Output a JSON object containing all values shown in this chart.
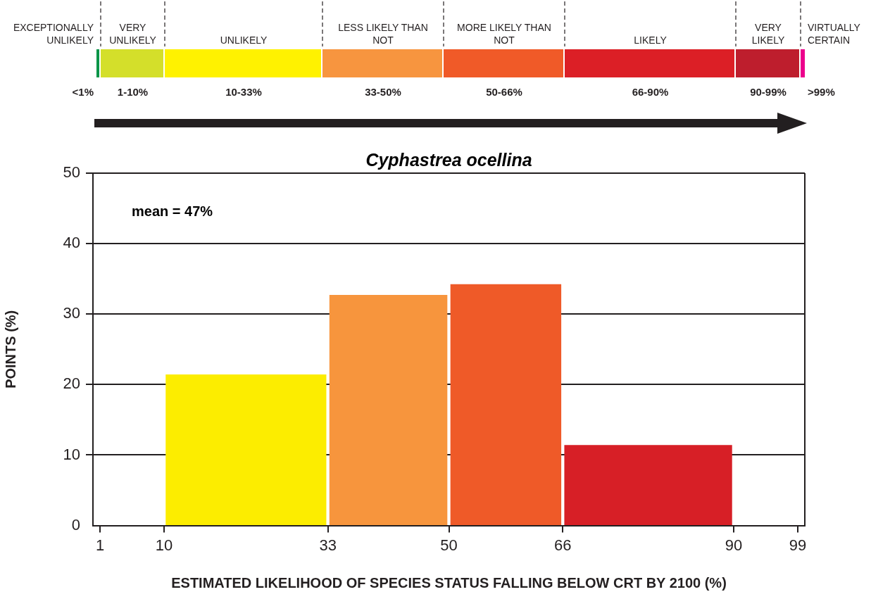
{
  "chart_data": {
    "type": "histogram",
    "title": "Cyphastrea ocellina",
    "xlabel": "ESTIMATED LIKELIHOOD OF SPECIES STATUS FALLING BELOW CRT BY 2100 (%)",
    "ylabel": "POINTS (%)",
    "bins": [
      10,
      33,
      50,
      66,
      90
    ],
    "values": [
      21.4,
      32.7,
      34.2,
      11.4
    ],
    "colors": [
      "#fced00",
      "#f7953d",
      "#ef5a28",
      "#d71f26"
    ],
    "xlim": [
      0,
      100
    ],
    "ylim": [
      0,
      50
    ],
    "xticks": [
      1,
      10,
      33,
      50,
      66,
      90,
      99
    ],
    "yticks": [
      0,
      10,
      20,
      30,
      40,
      50
    ],
    "grid": "y",
    "legend": false,
    "annotations": [
      "mean = 47%",
      "EXCEPTIONALLY UNLIKELY",
      "VERY UNLIKELY",
      "UNLIKELY",
      "LESS LIKELY THAN NOT",
      "MORE LIKELY THAN NOT",
      "LIKELY",
      "VERY LIKELY",
      "VIRTUALLY CERTAIN",
      "<1%",
      "1-10%",
      "10-33%",
      "33-50%",
      "50-66%",
      "66-90%",
      "90-99%",
      ">99%"
    ]
  }
}
